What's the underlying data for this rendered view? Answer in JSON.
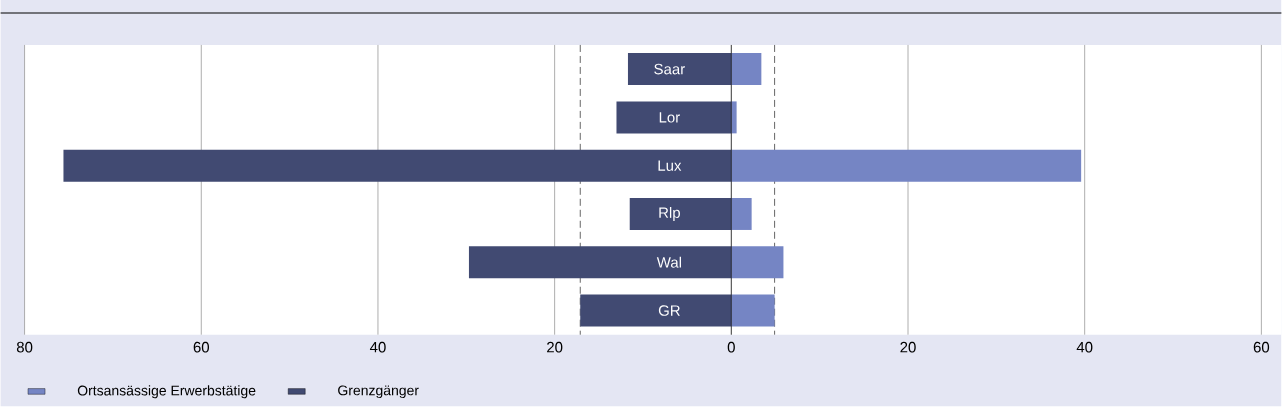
{
  "chart_data": {
    "type": "bar",
    "orientation": "horizontal",
    "stacked": true,
    "categories": [
      "Saar",
      "Lor",
      "Lux",
      "Rlp",
      "Wal",
      "GR"
    ],
    "series": [
      {
        "name": "Ortsansässige Erwerbstätige",
        "color": "#7585c4",
        "values": [
          3.4,
          0.6,
          39.6,
          2.3,
          5.9,
          4.9
        ]
      },
      {
        "name": "Grenzgänger",
        "color": "#414a72",
        "values": [
          -11.7,
          -13.0,
          -75.6,
          -11.5,
          -29.7,
          -17.1
        ]
      }
    ],
    "xlim": [
      -80,
      60
    ],
    "xticks": [
      {
        "value": -80,
        "label": "80"
      },
      {
        "value": -60,
        "label": "60"
      },
      {
        "value": -40,
        "label": "40"
      },
      {
        "value": -20,
        "label": "20"
      },
      0,
      20,
      40,
      60
    ],
    "grid": "x",
    "legend": "bottom left",
    "ref_lines": [
      {
        "axis": "x",
        "value": -17.1,
        "line_style": "dashed",
        "color": "#555555"
      },
      {
        "axis": "x",
        "value": 4.9,
        "line_style": "dashed",
        "color": "#555555"
      }
    ]
  }
}
